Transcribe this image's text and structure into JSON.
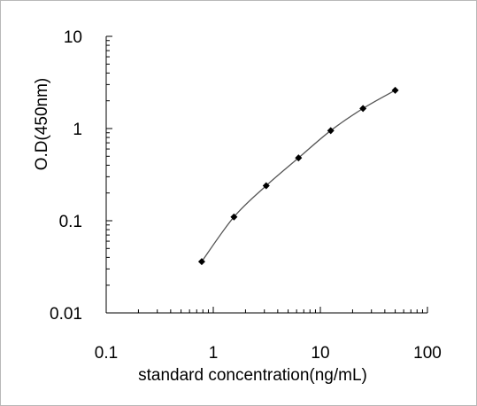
{
  "chart_data": {
    "type": "line",
    "title": "",
    "xlabel": "standard concentration(ng/mL)",
    "ylabel": "O.D(450nm)",
    "x_scale": "log",
    "y_scale": "log",
    "xlim": [
      0.1,
      100
    ],
    "ylim": [
      0.01,
      10
    ],
    "x_ticks": [
      "0.1",
      "1",
      "10",
      "100"
    ],
    "y_ticks": [
      "10",
      "1",
      "0.1",
      "0.01"
    ],
    "grid": false,
    "legend": "none",
    "series": [
      {
        "x": [
          0.78,
          1.56,
          3.12,
          6.25,
          12.5,
          25,
          50
        ],
        "y": [
          0.036,
          0.11,
          0.24,
          0.48,
          0.95,
          1.65,
          2.6
        ]
      }
    ],
    "colors": {
      "line": "#555555",
      "marker": "#000000",
      "axis": "#000000"
    }
  }
}
